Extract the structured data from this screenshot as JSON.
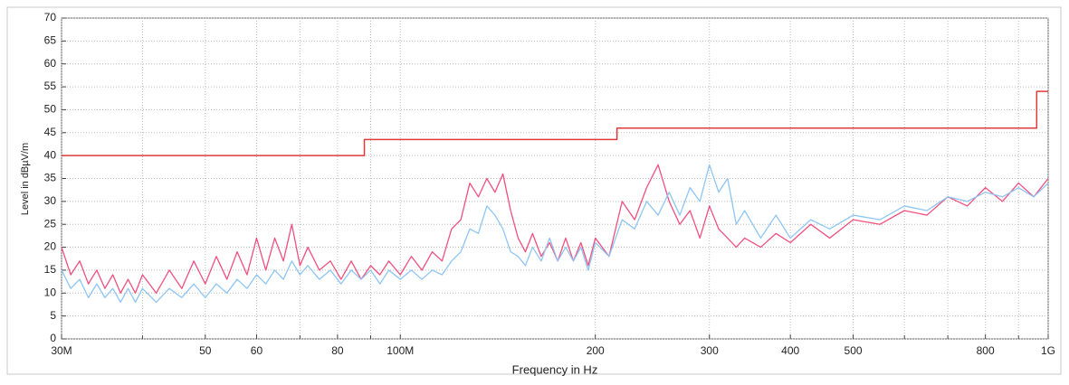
{
  "chart_data": {
    "type": "line",
    "xlabel": "Frequency in Hz",
    "ylabel": "Level in dBµV/m",
    "log_x": true,
    "grid": true,
    "xlim": [
      30000000,
      1000000000
    ],
    "ylim": [
      0,
      70
    ],
    "yticks": [
      0,
      5,
      10,
      15,
      20,
      25,
      30,
      35,
      40,
      45,
      50,
      55,
      60,
      65,
      70
    ],
    "xticks": [
      {
        "value": 30000000,
        "label": "30M"
      },
      {
        "value": 50000000,
        "label": "50"
      },
      {
        "value": 60000000,
        "label": "60"
      },
      {
        "value": 80000000,
        "label": "80"
      },
      {
        "value": 100000000,
        "label": "100M"
      },
      {
        "value": 200000000,
        "label": "200"
      },
      {
        "value": 300000000,
        "label": "300"
      },
      {
        "value": 400000000,
        "label": "400"
      },
      {
        "value": 500000000,
        "label": "500"
      },
      {
        "value": 800000000,
        "label": "800"
      },
      {
        "value": 1000000000,
        "label": "1G"
      }
    ],
    "xminorticks": [
      40000000,
      70000000,
      90000000,
      600000000,
      700000000,
      900000000
    ],
    "x": [
      30000000,
      31000000,
      32000000,
      33000000,
      34000000,
      35000000,
      36000000,
      37000000,
      38000000,
      39000000,
      40000000,
      42000000,
      44000000,
      46000000,
      48000000,
      50000000,
      52000000,
      54000000,
      56000000,
      58000000,
      60000000,
      62000000,
      64000000,
      66000000,
      68000000,
      70000000,
      72000000,
      75000000,
      78000000,
      81000000,
      84000000,
      87000000,
      90000000,
      93000000,
      96000000,
      100000000,
      104000000,
      108000000,
      112000000,
      116000000,
      120000000,
      124000000,
      128000000,
      132000000,
      136000000,
      140000000,
      144000000,
      148000000,
      152000000,
      156000000,
      160000000,
      165000000,
      170000000,
      175000000,
      180000000,
      185000000,
      190000000,
      195000000,
      200000000,
      210000000,
      220000000,
      230000000,
      240000000,
      250000000,
      260000000,
      270000000,
      280000000,
      290000000,
      300000000,
      310000000,
      320000000,
      330000000,
      340000000,
      360000000,
      380000000,
      400000000,
      430000000,
      460000000,
      500000000,
      550000000,
      600000000,
      650000000,
      700000000,
      750000000,
      800000000,
      850000000,
      900000000,
      950000000,
      1000000000
    ],
    "series": [
      {
        "color": "#f0507f",
        "values": [
          20,
          14,
          17,
          12,
          15,
          11,
          14,
          10,
          13,
          10,
          14,
          10,
          15,
          11,
          17,
          12,
          18,
          13,
          19,
          14,
          22,
          15,
          22,
          17,
          25,
          16,
          20,
          15,
          17,
          13,
          17,
          13,
          16,
          14,
          17,
          14,
          18,
          15,
          19,
          17,
          24,
          26,
          34,
          31,
          35,
          32,
          36,
          28,
          22,
          19,
          23,
          18,
          21,
          17,
          22,
          17,
          21,
          16,
          22,
          18,
          30,
          26,
          33,
          38,
          30,
          25,
          28,
          22,
          29,
          24,
          22,
          20,
          22,
          20,
          23,
          21,
          25,
          22,
          26,
          25,
          28,
          27,
          31,
          29,
          33,
          30,
          34,
          31,
          35
        ]
      },
      {
        "color": "#8ec5f5",
        "values": [
          15,
          11,
          13,
          9,
          12,
          9,
          11,
          8,
          11,
          8,
          11,
          8,
          11,
          9,
          12,
          9,
          12,
          10,
          13,
          11,
          14,
          12,
          15,
          13,
          17,
          14,
          16,
          13,
          15,
          12,
          15,
          13,
          15,
          12,
          15,
          13,
          15,
          13,
          15,
          14,
          17,
          19,
          24,
          23,
          29,
          27,
          24,
          19,
          18,
          16,
          20,
          17,
          22,
          17,
          20,
          17,
          20,
          15,
          21,
          18,
          26,
          24,
          30,
          27,
          32,
          27,
          33,
          30,
          38,
          32,
          35,
          25,
          28,
          22,
          27,
          22,
          26,
          24,
          27,
          26,
          29,
          28,
          31,
          30,
          32,
          31,
          33,
          31,
          34
        ]
      }
    ],
    "limit": {
      "color": "#e03a3a",
      "x": [
        30000000,
        88000000,
        88000000,
        216000000,
        216000000,
        960000000,
        960000000,
        1000000000
      ],
      "values": [
        40,
        40,
        43.5,
        43.5,
        46,
        46,
        54,
        54
      ]
    }
  }
}
